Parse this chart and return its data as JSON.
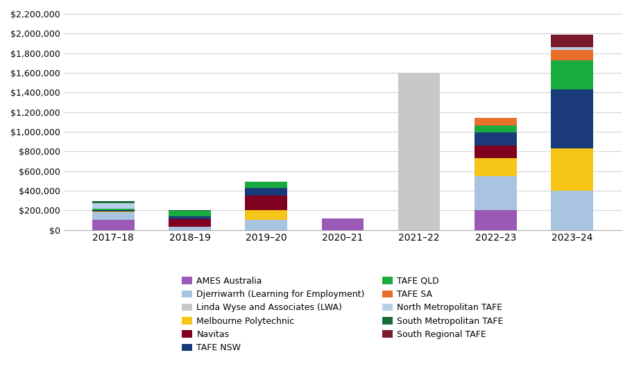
{
  "years": [
    "2017–18",
    "2018–19",
    "2019–20",
    "2020–21",
    "2021–22",
    "2022–23",
    "2023–24"
  ],
  "series": [
    {
      "label": "AMES Australia",
      "color": "#9b59b6",
      "values": [
        100000,
        0,
        0,
        120000,
        0,
        200000,
        0
      ]
    },
    {
      "label": "Djerriwarrh (Learning for Employment)",
      "color": "#a8c4e0",
      "values": [
        80000,
        30000,
        100000,
        0,
        0,
        350000,
        400000
      ]
    },
    {
      "label": "Linda Wyse and Associates (LWA)",
      "color": "#c8c8c8",
      "values": [
        0,
        0,
        0,
        0,
        1600000,
        0,
        0
      ]
    },
    {
      "label": "Melbourne Polytechnic",
      "color": "#f5c518",
      "values": [
        10000,
        0,
        100000,
        0,
        0,
        180000,
        430000
      ]
    },
    {
      "label": "Navitas",
      "color": "#800020",
      "values": [
        0,
        80000,
        150000,
        0,
        0,
        130000,
        0
      ]
    },
    {
      "label": "TAFE NSW",
      "color": "#1a3a7a",
      "values": [
        15000,
        25000,
        80000,
        0,
        0,
        130000,
        600000
      ]
    },
    {
      "label": "TAFE QLD",
      "color": "#1aab40",
      "values": [
        10000,
        60000,
        60000,
        0,
        0,
        70000,
        300000
      ]
    },
    {
      "label": "TAFE SA",
      "color": "#e8702a",
      "values": [
        0,
        0,
        0,
        0,
        0,
        80000,
        100000
      ]
    },
    {
      "label": "North Metropolitan TAFE",
      "color": "#b8cfe8",
      "values": [
        60000,
        0,
        0,
        0,
        0,
        0,
        30000
      ]
    },
    {
      "label": "South Metropolitan TAFE",
      "color": "#1a6b3a",
      "values": [
        20000,
        10000,
        0,
        0,
        0,
        0,
        0
      ]
    },
    {
      "label": "South Regional TAFE",
      "color": "#7b1a2a",
      "values": [
        0,
        0,
        0,
        0,
        0,
        0,
        130000
      ]
    }
  ],
  "legend_order": [
    0,
    1,
    2,
    3,
    4,
    5,
    6,
    7,
    8,
    9,
    10
  ],
  "ylim": [
    0,
    2200000
  ],
  "ytick_interval": 200000,
  "background_color": "#ffffff",
  "grid_color": "#d3d3d3"
}
